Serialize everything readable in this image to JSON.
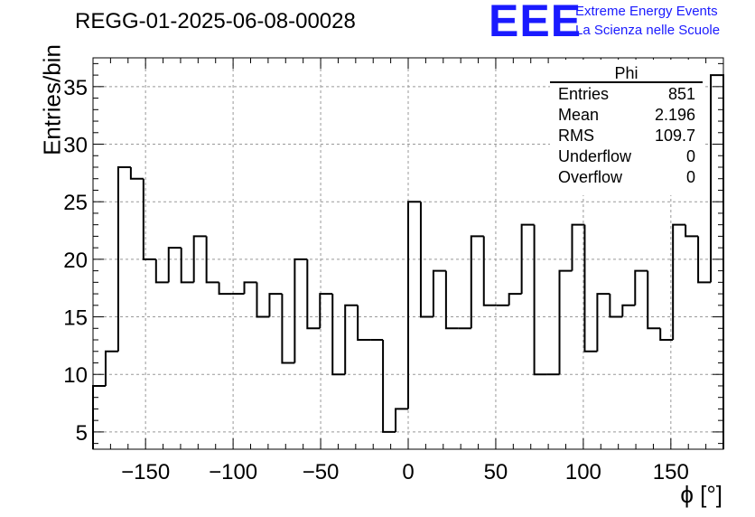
{
  "title": "REGG-01-2025-06-08-00028",
  "logo": {
    "mark": "EEE",
    "line1": "Extreme Energy Events",
    "line2": "La Scienza nelle Scuole",
    "color": "#1a1aff"
  },
  "chart_data": {
    "type": "histogram",
    "title": "REGG-01-2025-06-08-00028",
    "xlabel": "ϕ [°]",
    "ylabel": "Entries/bin",
    "xlim": [
      -180,
      180
    ],
    "ylim": [
      3.5,
      37.5
    ],
    "bin_width": 7.2,
    "x_ticks": [
      -150,
      -100,
      -50,
      0,
      50,
      100,
      150
    ],
    "x_tick_labels": [
      "−150",
      "−100",
      "−50",
      "0",
      "50",
      "100",
      "150"
    ],
    "y_ticks": [
      5,
      10,
      15,
      20,
      25,
      30,
      35
    ],
    "y_tick_labels": [
      "5",
      "10",
      "15",
      "20",
      "25",
      "30",
      "35"
    ],
    "grid": true,
    "line_color": "#000000",
    "values": [
      9,
      12,
      28,
      27,
      20,
      18,
      21,
      18,
      22,
      18,
      17,
      17,
      18,
      15,
      17,
      11,
      20,
      14,
      17,
      10,
      16,
      13,
      13,
      5,
      7,
      25,
      15,
      19,
      14,
      14,
      22,
      16,
      16,
      17,
      23,
      10,
      10,
      19,
      23,
      12,
      17,
      15,
      16,
      19,
      14,
      13,
      23,
      22,
      18,
      36
    ],
    "stats": {
      "name": "Phi",
      "rows": [
        {
          "label": "Entries",
          "value": "851"
        },
        {
          "label": "Mean",
          "value": "2.196"
        },
        {
          "label": "RMS",
          "value": "109.7"
        },
        {
          "label": "Underflow",
          "value": "0"
        },
        {
          "label": "Overflow",
          "value": "0"
        }
      ]
    }
  }
}
